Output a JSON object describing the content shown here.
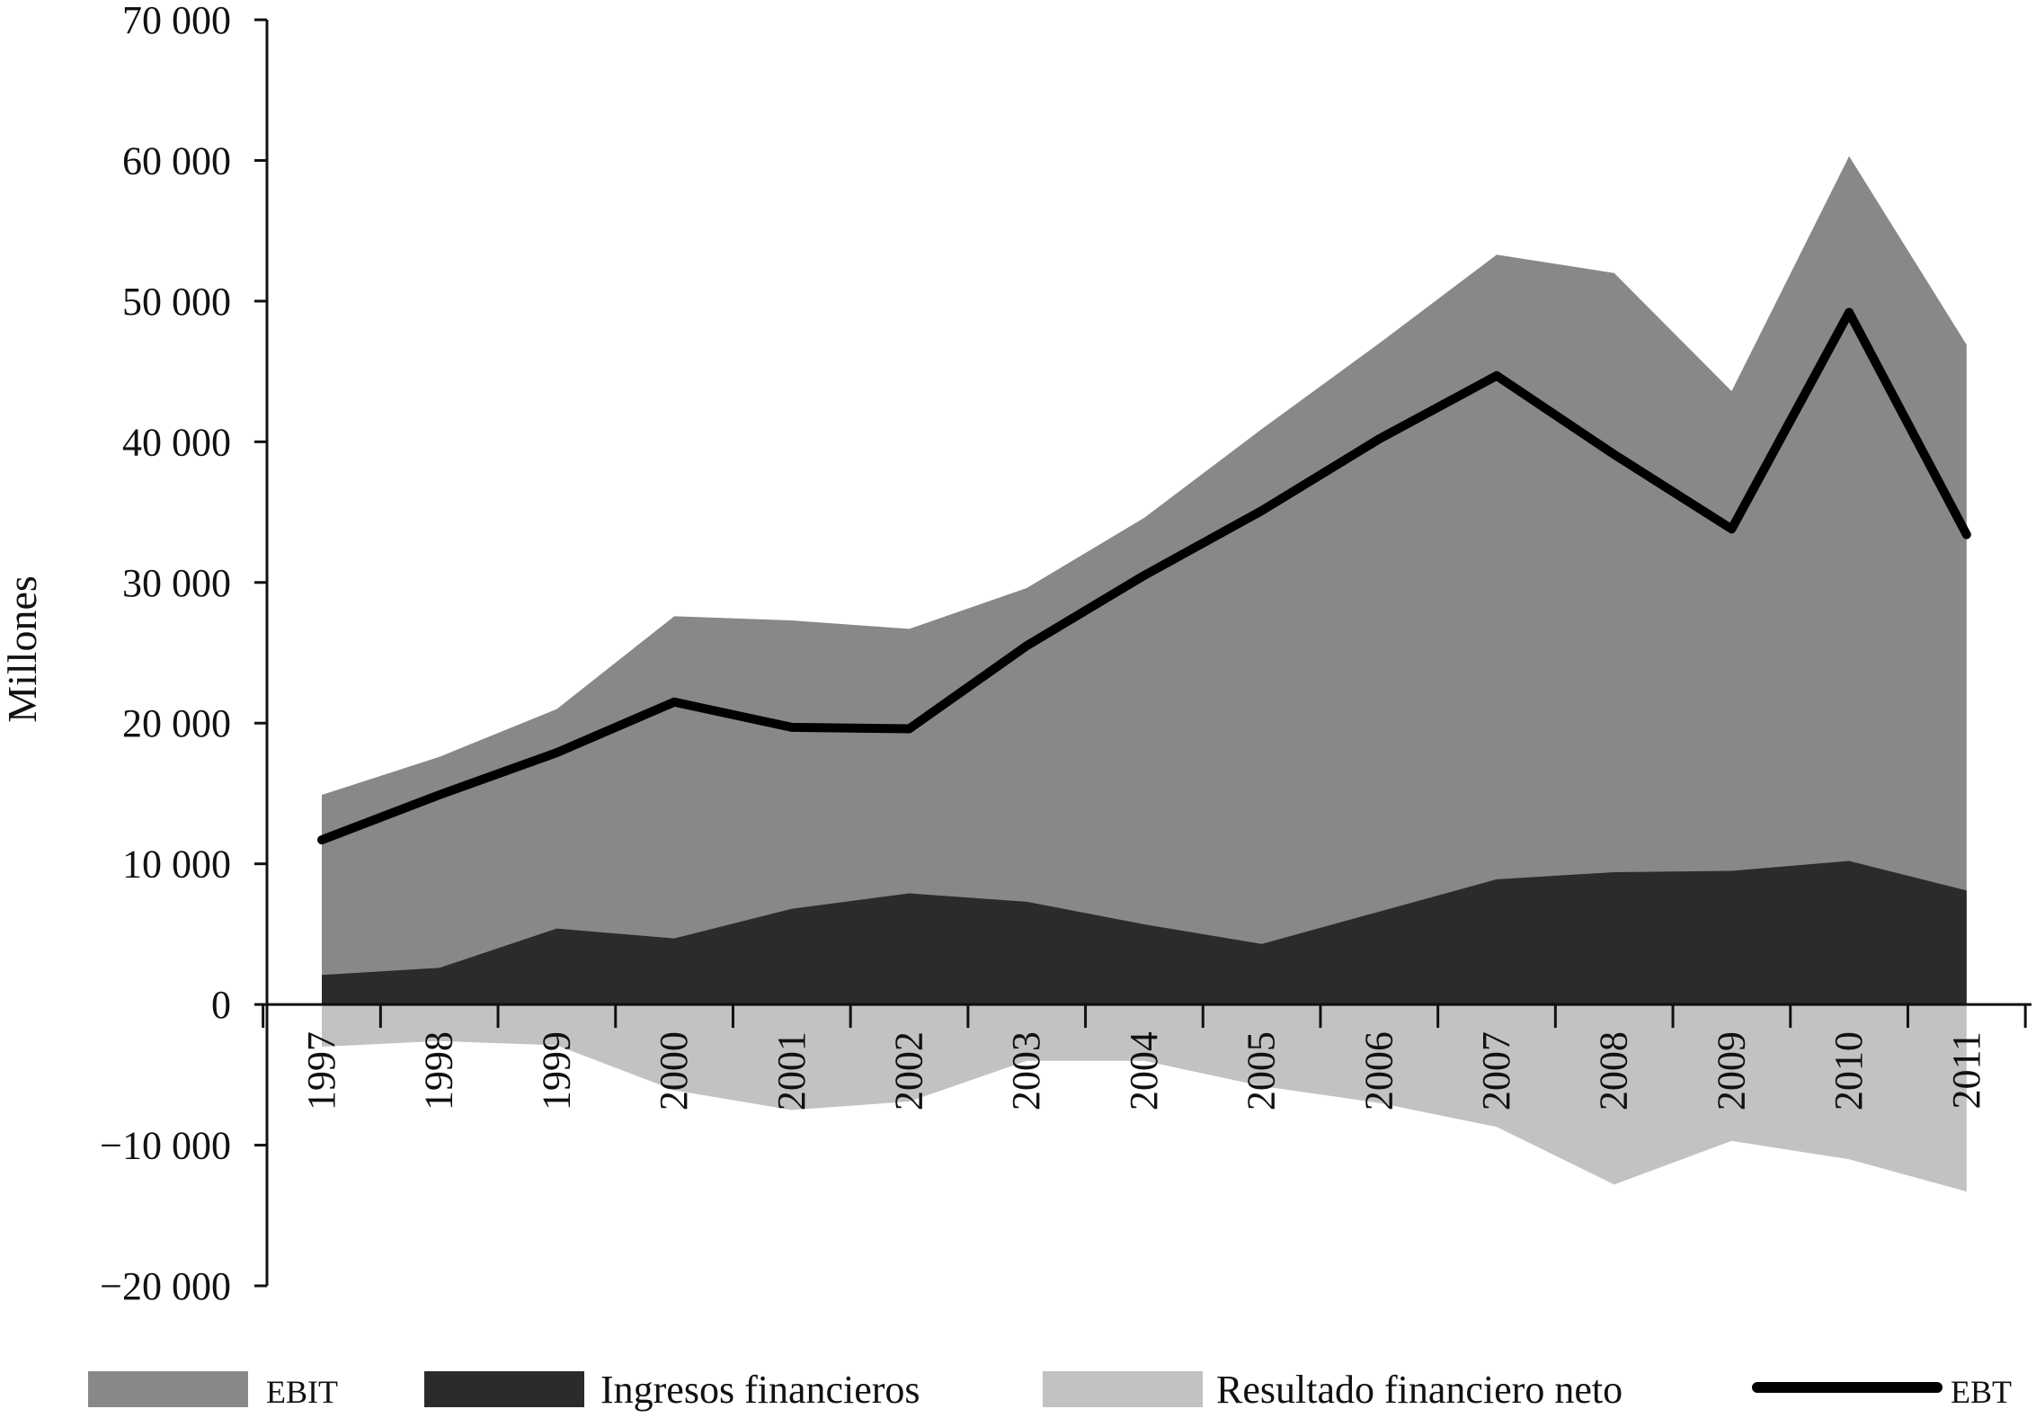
{
  "chart_data": {
    "type": "area",
    "title": "",
    "xlabel": "",
    "ylabel": "Millones",
    "ylim": [
      -20000,
      70000
    ],
    "yticks": [
      70000,
      60000,
      50000,
      40000,
      30000,
      20000,
      10000,
      0,
      -10000,
      -20000
    ],
    "ytick_labels": [
      "70 000",
      "60 000",
      "50 000",
      "40 000",
      "30 000",
      "20 000",
      "10 000",
      "0",
      "−10 000",
      "−20 000"
    ],
    "categories": [
      "1997",
      "1998",
      "1999",
      "2000",
      "2001",
      "2002",
      "2003",
      "2004",
      "2005",
      "2006",
      "2007",
      "2008",
      "2009",
      "2010",
      "2011"
    ],
    "grid": false,
    "legend_position": "bottom",
    "series": [
      {
        "name": "EBIT",
        "kind": "area",
        "color": "#888888",
        "values": [
          14900,
          17600,
          21000,
          27600,
          27300,
          26700,
          29600,
          34600,
          40900,
          47000,
          53300,
          52000,
          43600,
          60300,
          46900
        ]
      },
      {
        "name": "Ingresos financieros",
        "kind": "area",
        "color": "#2b2b2b",
        "values": [
          2100,
          2600,
          5400,
          4700,
          6800,
          7900,
          7300,
          5700,
          4300,
          6600,
          8900,
          9400,
          9500,
          10200,
          8100
        ]
      },
      {
        "name": "Resultado financiero neto",
        "kind": "area",
        "color": "#c2c2c2",
        "values": [
          -3000,
          -2600,
          -2900,
          -6100,
          -7500,
          -6900,
          -4000,
          -4000,
          -5800,
          -7000,
          -8700,
          -12800,
          -9700,
          -11000,
          -13300
        ]
      },
      {
        "name": "EBT",
        "kind": "line",
        "color": "#000000",
        "values": [
          11700,
          14900,
          17900,
          21500,
          19700,
          19600,
          25500,
          30500,
          35100,
          40200,
          44700,
          39100,
          33800,
          49200,
          33400
        ]
      }
    ]
  }
}
